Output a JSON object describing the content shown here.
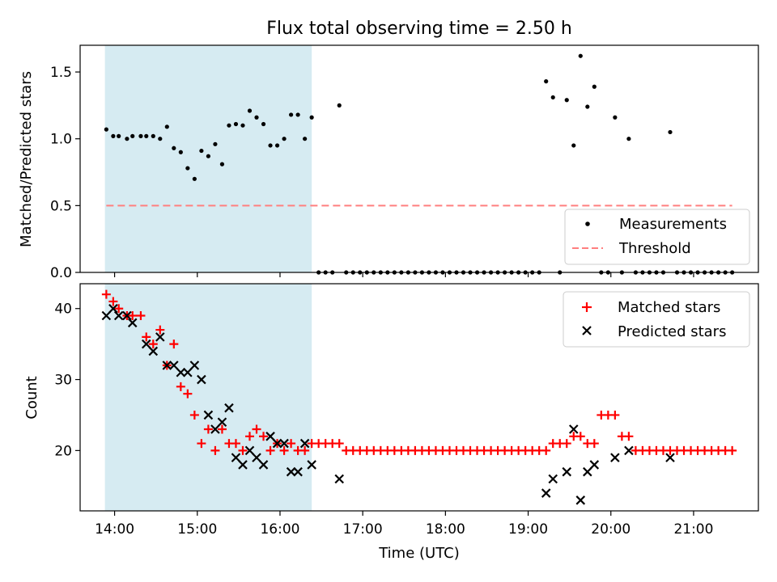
{
  "chart_data": {
    "title": "Flux total observing time = 2.50 h",
    "xlabel": "Time (UTC)",
    "x_ticks": [
      "14:00",
      "15:00",
      "16:00",
      "17:00",
      "18:00",
      "19:00",
      "20:00",
      "21:00"
    ],
    "xlim": [
      "13:35",
      "21:47"
    ],
    "shaded_region": [
      "13:53",
      "16:23"
    ],
    "shade_color": "#add8e6",
    "panels": [
      {
        "type": "scatter",
        "ylabel": "Matched/Predicted stars",
        "ylim": [
          0,
          1.7
        ],
        "y_ticks": [
          "0.0",
          "0.5",
          "1.0",
          "1.5"
        ],
        "legend_position": "lower-right",
        "series": [
          {
            "name": "Measurements",
            "marker": "dot",
            "color": "#000000",
            "points": [
              [
                "13:54",
                1.07
              ],
              [
                "13:59",
                1.02
              ],
              [
                "14:03",
                1.02
              ],
              [
                "14:09",
                1.0
              ],
              [
                "14:13",
                1.02
              ],
              [
                "14:19",
                1.02
              ],
              [
                "14:23",
                1.02
              ],
              [
                "14:28",
                1.02
              ],
              [
                "14:33",
                1.0
              ],
              [
                "14:38",
                1.09
              ],
              [
                "14:43",
                0.93
              ],
              [
                "14:48",
                0.9
              ],
              [
                "14:53",
                0.78
              ],
              [
                "14:58",
                0.7
              ],
              [
                "15:03",
                0.91
              ],
              [
                "15:08",
                0.87
              ],
              [
                "15:13",
                0.96
              ],
              [
                "15:18",
                0.81
              ],
              [
                "15:23",
                1.1
              ],
              [
                "15:28",
                1.11
              ],
              [
                "15:33",
                1.1
              ],
              [
                "15:38",
                1.21
              ],
              [
                "15:43",
                1.16
              ],
              [
                "15:48",
                1.11
              ],
              [
                "15:53",
                0.95
              ],
              [
                "15:58",
                0.95
              ],
              [
                "16:03",
                1.0
              ],
              [
                "16:08",
                1.18
              ],
              [
                "16:13",
                1.18
              ],
              [
                "16:18",
                1.0
              ],
              [
                "16:23",
                1.16
              ],
              [
                "16:28",
                0.0
              ],
              [
                "16:33",
                0.0
              ],
              [
                "16:38",
                0.0
              ],
              [
                "16:43",
                1.25
              ],
              [
                "16:48",
                0.0
              ],
              [
                "16:53",
                0.0
              ],
              [
                "16:58",
                0.0
              ],
              [
                "17:03",
                0.0
              ],
              [
                "17:08",
                0.0
              ],
              [
                "17:13",
                0.0
              ],
              [
                "17:18",
                0.0
              ],
              [
                "17:23",
                0.0
              ],
              [
                "17:28",
                0.0
              ],
              [
                "17:33",
                0.0
              ],
              [
                "17:38",
                0.0
              ],
              [
                "17:43",
                0.0
              ],
              [
                "17:48",
                0.0
              ],
              [
                "17:53",
                0.0
              ],
              [
                "17:58",
                0.0
              ],
              [
                "18:03",
                0.0
              ],
              [
                "18:08",
                0.0
              ],
              [
                "18:13",
                0.0
              ],
              [
                "18:18",
                0.0
              ],
              [
                "18:23",
                0.0
              ],
              [
                "18:28",
                0.0
              ],
              [
                "18:33",
                0.0
              ],
              [
                "18:38",
                0.0
              ],
              [
                "18:43",
                0.0
              ],
              [
                "18:48",
                0.0
              ],
              [
                "18:53",
                0.0
              ],
              [
                "18:58",
                0.0
              ],
              [
                "19:03",
                0.0
              ],
              [
                "19:08",
                0.0
              ],
              [
                "19:13",
                1.43
              ],
              [
                "19:18",
                1.31
              ],
              [
                "19:23",
                0.0
              ],
              [
                "19:28",
                1.29
              ],
              [
                "19:33",
                0.95
              ],
              [
                "19:38",
                1.62
              ],
              [
                "19:43",
                1.24
              ],
              [
                "19:48",
                1.39
              ],
              [
                "19:53",
                0.0
              ],
              [
                "19:58",
                0.0
              ],
              [
                "20:03",
                1.16
              ],
              [
                "20:08",
                0.0
              ],
              [
                "20:13",
                1.0
              ],
              [
                "20:18",
                0.0
              ],
              [
                "20:23",
                0.0
              ],
              [
                "20:28",
                0.0
              ],
              [
                "20:33",
                0.0
              ],
              [
                "20:38",
                0.0
              ],
              [
                "20:43",
                1.05
              ],
              [
                "20:48",
                0.0
              ],
              [
                "20:53",
                0.0
              ],
              [
                "20:58",
                0.0
              ],
              [
                "21:03",
                0.0
              ],
              [
                "21:08",
                0.0
              ],
              [
                "21:13",
                0.0
              ],
              [
                "21:18",
                0.0
              ],
              [
                "21:23",
                0.0
              ],
              [
                "21:28",
                0.0
              ]
            ]
          },
          {
            "name": "Threshold",
            "marker": "dashed-line",
            "color": "#ff7f7f",
            "points": [
              [
                "13:54",
                0.5
              ],
              [
                "21:28",
                0.5
              ]
            ]
          }
        ]
      },
      {
        "type": "scatter",
        "ylabel": "Count",
        "ylim": [
          11.5,
          43.5
        ],
        "y_ticks": [
          "20",
          "30",
          "40"
        ],
        "legend_position": "upper-right",
        "series": [
          {
            "name": "Matched stars",
            "marker": "plus",
            "color": "#ff0000",
            "points": [
              [
                "13:54",
                42
              ],
              [
                "13:59",
                41
              ],
              [
                "14:03",
                40
              ],
              [
                "14:09",
                39
              ],
              [
                "14:13",
                39
              ],
              [
                "14:19",
                39
              ],
              [
                "14:23",
                36
              ],
              [
                "14:28",
                35
              ],
              [
                "14:33",
                37
              ],
              [
                "14:38",
                32
              ],
              [
                "14:43",
                35
              ],
              [
                "14:48",
                29
              ],
              [
                "14:53",
                28
              ],
              [
                "14:58",
                25
              ],
              [
                "15:03",
                21
              ],
              [
                "15:08",
                23
              ],
              [
                "15:13",
                20
              ],
              [
                "15:18",
                23
              ],
              [
                "15:23",
                21
              ],
              [
                "15:28",
                21
              ],
              [
                "15:33",
                20
              ],
              [
                "15:38",
                22
              ],
              [
                "15:43",
                23
              ],
              [
                "15:48",
                22
              ],
              [
                "15:53",
                20
              ],
              [
                "15:58",
                21
              ],
              [
                "16:03",
                20
              ],
              [
                "16:08",
                21
              ],
              [
                "16:13",
                20
              ],
              [
                "16:18",
                20
              ],
              [
                "16:23",
                21
              ],
              [
                "16:28",
                21
              ],
              [
                "16:33",
                21
              ],
              [
                "16:38",
                21
              ],
              [
                "16:43",
                21
              ],
              [
                "16:48",
                20
              ],
              [
                "16:53",
                20
              ],
              [
                "16:58",
                20
              ],
              [
                "17:03",
                20
              ],
              [
                "17:08",
                20
              ],
              [
                "17:13",
                20
              ],
              [
                "17:18",
                20
              ],
              [
                "17:23",
                20
              ],
              [
                "17:28",
                20
              ],
              [
                "17:33",
                20
              ],
              [
                "17:38",
                20
              ],
              [
                "17:43",
                20
              ],
              [
                "17:48",
                20
              ],
              [
                "17:53",
                20
              ],
              [
                "17:58",
                20
              ],
              [
                "18:03",
                20
              ],
              [
                "18:08",
                20
              ],
              [
                "18:13",
                20
              ],
              [
                "18:18",
                20
              ],
              [
                "18:23",
                20
              ],
              [
                "18:28",
                20
              ],
              [
                "18:33",
                20
              ],
              [
                "18:38",
                20
              ],
              [
                "18:43",
                20
              ],
              [
                "18:48",
                20
              ],
              [
                "18:53",
                20
              ],
              [
                "18:58",
                20
              ],
              [
                "19:03",
                20
              ],
              [
                "19:08",
                20
              ],
              [
                "19:13",
                20
              ],
              [
                "19:18",
                21
              ],
              [
                "19:23",
                21
              ],
              [
                "19:28",
                21
              ],
              [
                "19:33",
                22
              ],
              [
                "19:38",
                22
              ],
              [
                "19:43",
                21
              ],
              [
                "19:48",
                21
              ],
              [
                "19:53",
                25
              ],
              [
                "19:58",
                25
              ],
              [
                "20:03",
                25
              ],
              [
                "20:08",
                22
              ],
              [
                "20:13",
                22
              ],
              [
                "20:18",
                20
              ],
              [
                "20:23",
                20
              ],
              [
                "20:28",
                20
              ],
              [
                "20:33",
                20
              ],
              [
                "20:38",
                20
              ],
              [
                "20:43",
                20
              ],
              [
                "20:48",
                20
              ],
              [
                "20:53",
                20
              ],
              [
                "20:58",
                20
              ],
              [
                "21:03",
                20
              ],
              [
                "21:08",
                20
              ],
              [
                "21:13",
                20
              ],
              [
                "21:18",
                20
              ],
              [
                "21:23",
                20
              ],
              [
                "21:28",
                20
              ]
            ]
          },
          {
            "name": "Predicted stars",
            "marker": "x",
            "color": "#000000",
            "points": [
              [
                "13:54",
                39
              ],
              [
                "13:59",
                40
              ],
              [
                "14:03",
                39
              ],
              [
                "14:09",
                39
              ],
              [
                "14:13",
                38
              ],
              [
                "14:23",
                35
              ],
              [
                "14:28",
                34
              ],
              [
                "14:33",
                36
              ],
              [
                "14:38",
                32
              ],
              [
                "14:43",
                32
              ],
              [
                "14:48",
                31
              ],
              [
                "14:53",
                31
              ],
              [
                "14:58",
                32
              ],
              [
                "15:03",
                30
              ],
              [
                "15:08",
                25
              ],
              [
                "15:13",
                23
              ],
              [
                "15:18",
                24
              ],
              [
                "15:23",
                26
              ],
              [
                "15:28",
                19
              ],
              [
                "15:33",
                18
              ],
              [
                "15:38",
                20
              ],
              [
                "15:43",
                19
              ],
              [
                "15:48",
                18
              ],
              [
                "15:53",
                22
              ],
              [
                "15:58",
                21
              ],
              [
                "16:03",
                21
              ],
              [
                "16:08",
                17
              ],
              [
                "16:13",
                17
              ],
              [
                "16:18",
                21
              ],
              [
                "16:23",
                18
              ],
              [
                "16:43",
                16
              ],
              [
                "19:13",
                14
              ],
              [
                "19:18",
                16
              ],
              [
                "19:28",
                17
              ],
              [
                "19:33",
                23
              ],
              [
                "19:38",
                13
              ],
              [
                "19:43",
                17
              ],
              [
                "19:48",
                18
              ],
              [
                "20:03",
                19
              ],
              [
                "20:13",
                20
              ],
              [
                "20:43",
                19
              ]
            ]
          }
        ]
      }
    ]
  }
}
